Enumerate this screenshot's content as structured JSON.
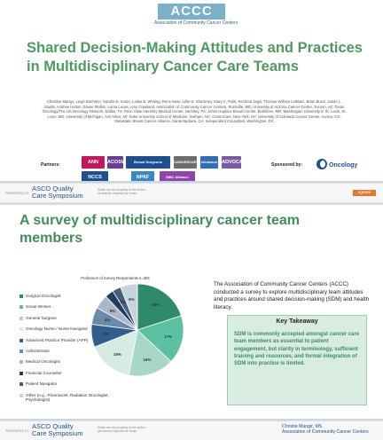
{
  "slide1": {
    "logo_letters": "ACCC",
    "logo_subtitle": "Association of Community Cancer Centers",
    "title": "Shared Decision-Making Attitudes and Practices in Multidisciplinary Cancer Care Teams",
    "authors": "Christine Mango, Leigh Boehmer, Sandra E. Kurtin, Lailea B. Whiting, Rene Kase, Lillie D. Shockney, Mary C. Politi, Rechma Jagsi, Thomas William LeBlanc, Brian Bunzi, Jamie L. Studts, Andrew Hutton, Elaine Plafkin, Lorna Lucas, Amy Copeland, Association of Community Cancer Centers, Rockville, MD; University of Arizona Cancer Center, Tucson, AZ; Texas Oncology/The US Oncology Network, Dallas, TX; Penn State Hershey Medical Center, Hershey, PA; Johns Hopkins Breast Center, Baltimore, MD; Washington University in St. Louis, St. Louis, MO; University of Michigan, Ann Arbor, MI; Duke University School of Medicine, Durham, NC; CommCare, New York, NY; University of Colorado Cancer Center, Aurora, CO; Metastatic Breast Cancer Alliance, Santa Barbara, CA; Independent Consultant, Washington, DC",
    "partners_label": "Partners:",
    "sponsored_label": "Sponsored by:",
    "partner_logos": [
      {
        "text": "ANN",
        "color": "#c2185b"
      },
      {
        "text": "ACOSW",
        "color": "#6a3d9a"
      },
      {
        "text": "Breast Surgeons",
        "color": "#1d4f91"
      },
      {
        "text": "CANCERCARE",
        "color": "#6d6d6d"
      },
      {
        "text": "clinicians",
        "color": "#2f6fb3"
      },
      {
        "text": "ADVOCACY",
        "color": "#7b5aa6"
      },
      {
        "text": "NCCS",
        "color": "#1d4f91"
      },
      {
        "text": "NPAF",
        "color": "#3a87c8"
      },
      {
        "text": "MBC Alliance",
        "color": "#8e44ad"
      }
    ],
    "sponsor": "Oncology"
  },
  "footer": {
    "presented_at": "PRESENTED AT:",
    "asco_line1": "ASCO Quality",
    "asco_line2": "Care Symposium",
    "proprietary": "Slides are the property of the author, permission required for reuse.",
    "hashtag": "#QCS19"
  },
  "slide2": {
    "title": "A survey of multidisciplinary cancer team members",
    "chart_heading": "Profession of Survey Respondents  n=305",
    "body": "The Association of Community Cancer Centers (ACCC) conducted a survey to explore multidisciplinary team attitudes and practices around shared decision-making (SDM) and health literacy.",
    "key_takeaway_title": "Key Takeaway",
    "key_takeaway_body": "SDM is commonly accepted amongst cancer care team members as essential to patient engagement, but clarity in terminology, sufficient training and resources, and formal integration of SDM into practice is limited.",
    "presenter_name": "Christie Mangir, MS",
    "presenter_org": "Association of Community Cancer Centers"
  },
  "chart_data": {
    "type": "pie",
    "title": "Profession of Survey Respondents  n=305",
    "categories": [
      "Surgical Oncologist",
      "Social Worker",
      "General Surgeon",
      "Oncology Nurse / Nurse Navigator",
      "Advanced Practice Provider (APP)",
      "Administrator",
      "Medical Oncologist",
      "Financial Counselor",
      "Patient Navigator",
      "Other (e.g., Pharmacist, Radiation Oncologist, Psychologist)"
    ],
    "values": [
      20,
      17,
      16,
      16,
      8,
      6,
      5,
      3,
      3,
      6
    ],
    "labels": [
      "20%",
      "17%",
      "16%",
      "16%",
      "8%",
      "6%",
      "5%",
      "3%",
      "3%",
      "6%"
    ],
    "colors": [
      "#2e8b6a",
      "#5cc0a3",
      "#a7d8c6",
      "#d6ebe3",
      "#2f5f8a",
      "#6a8bab",
      "#a8b8c8",
      "#1f3f63",
      "#45607a",
      "#c9d3dc"
    ]
  }
}
